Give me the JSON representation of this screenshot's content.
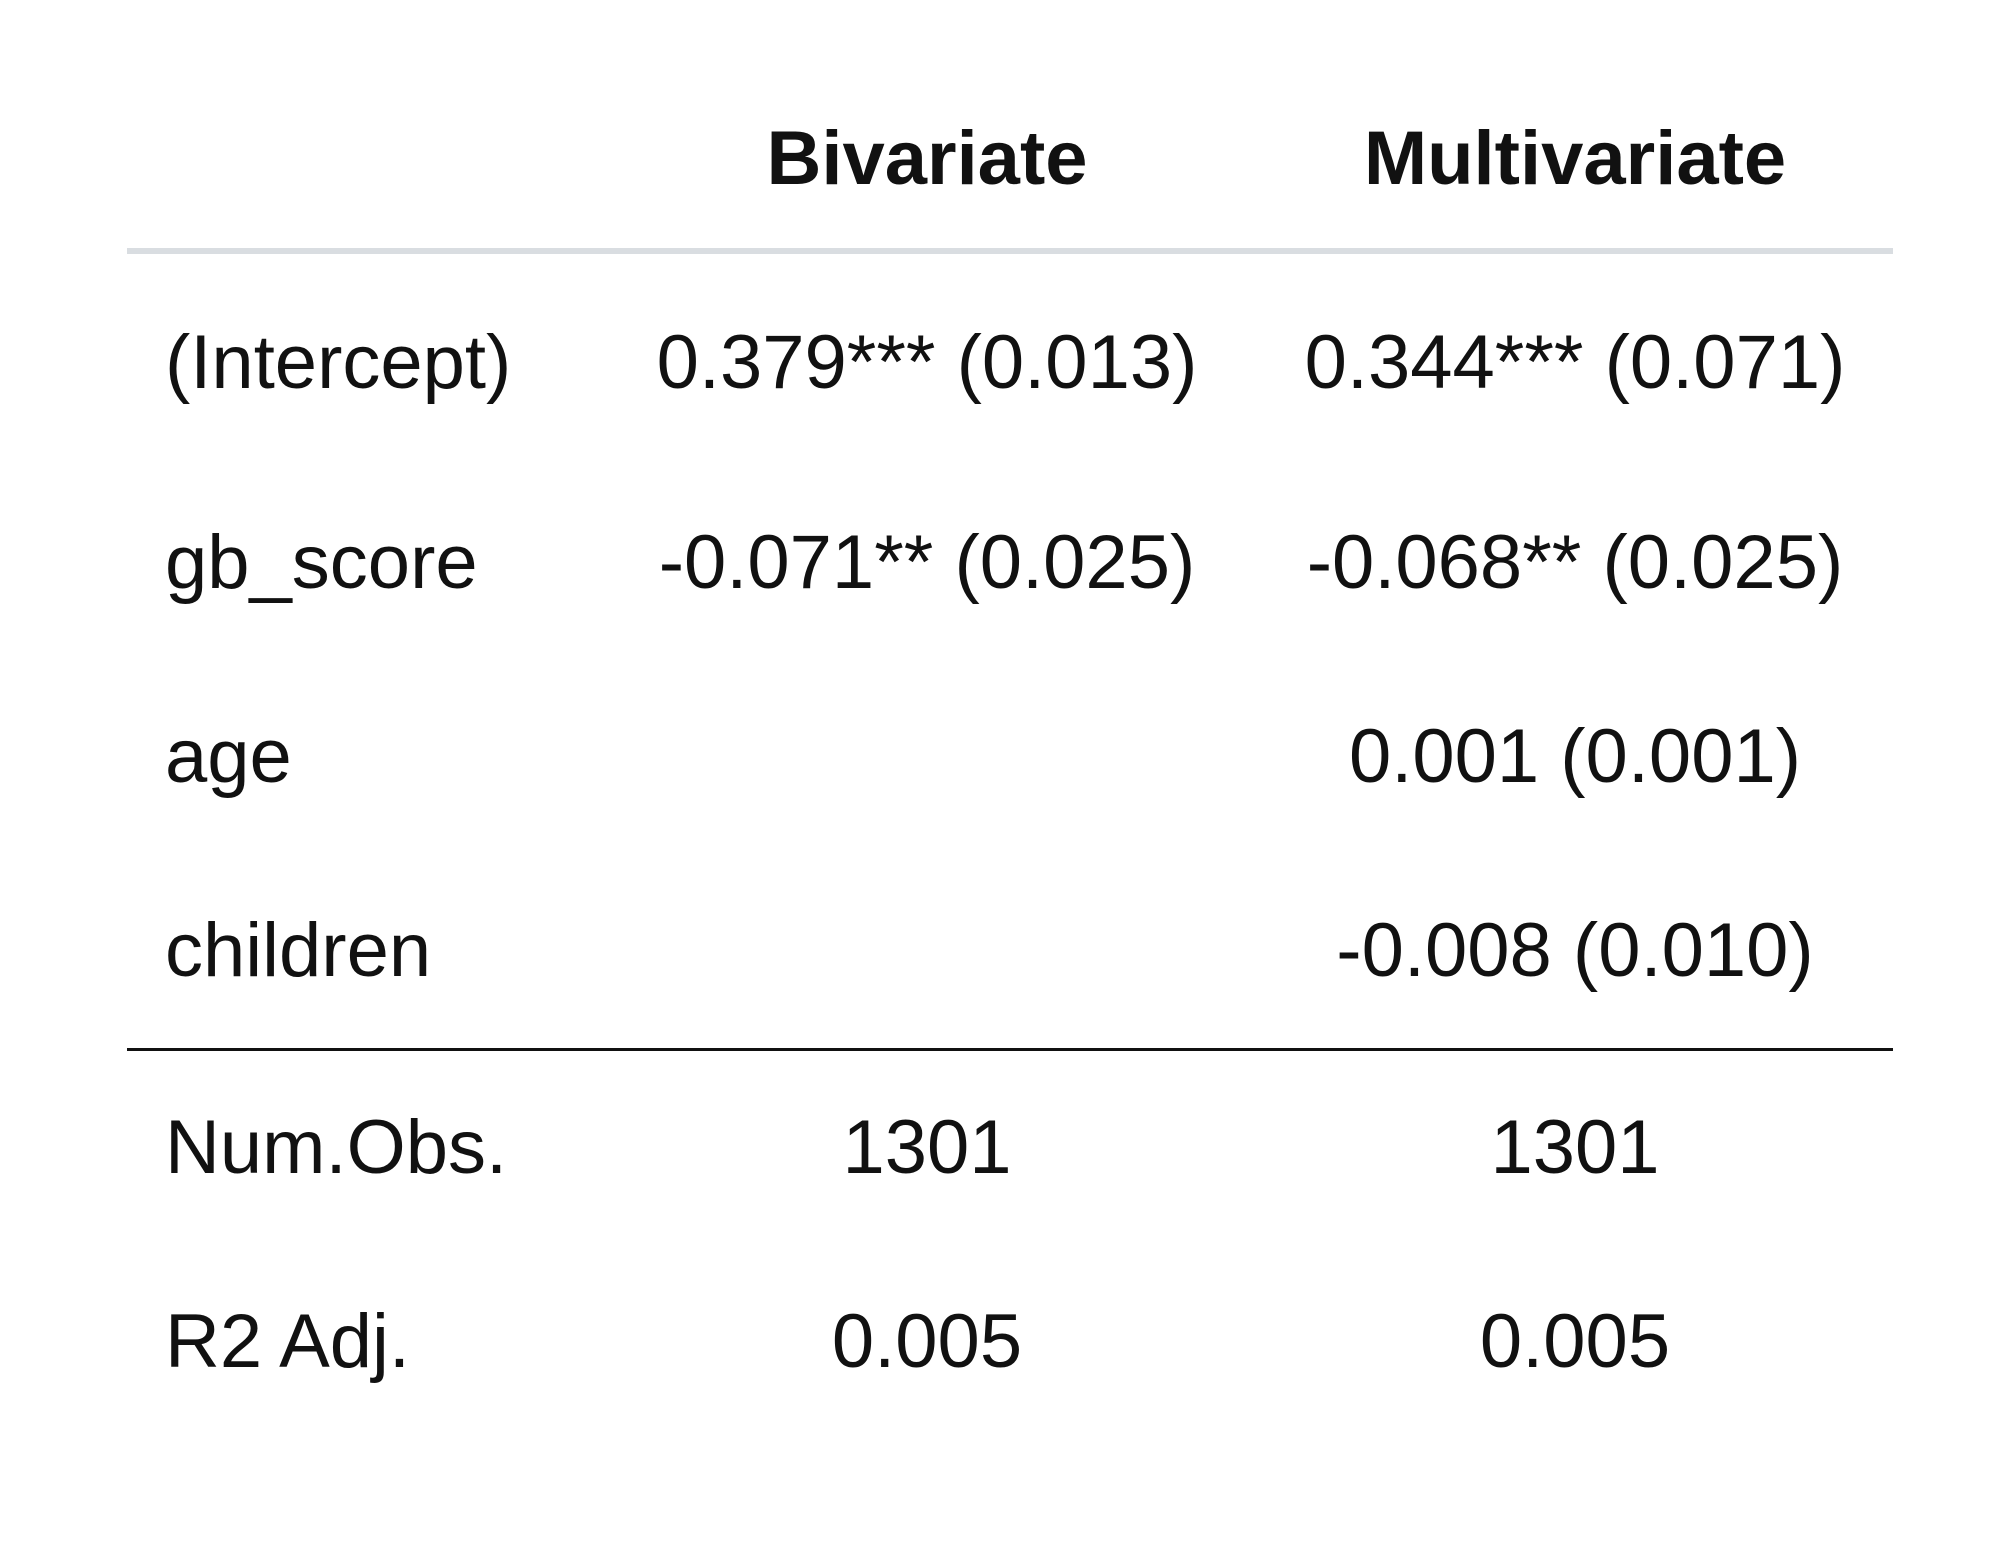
{
  "table": {
    "columns": [
      "",
      "Bivariate",
      "Multivariate"
    ],
    "coefficients": [
      {
        "label": "(Intercept)",
        "bivariate": "0.379*** (0.013)",
        "multivariate": "0.344*** (0.071)"
      },
      {
        "label": "gb_score",
        "bivariate": "-0.071** (0.025)",
        "multivariate": "-0.068** (0.025)"
      },
      {
        "label": "age",
        "bivariate": "",
        "multivariate": "0.001 (0.001)"
      },
      {
        "label": "children",
        "bivariate": "",
        "multivariate": "-0.008 (0.010)"
      }
    ],
    "statistics": [
      {
        "label": "Num.Obs.",
        "bivariate": "1301",
        "multivariate": "1301"
      },
      {
        "label": "R2 Adj.",
        "bivariate": "0.005",
        "multivariate": "0.005"
      }
    ]
  }
}
